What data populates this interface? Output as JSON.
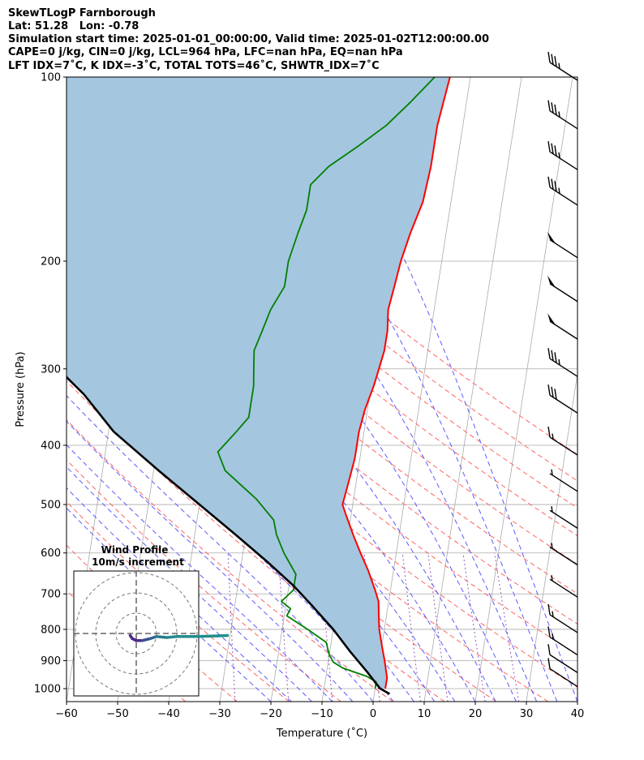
{
  "header": {
    "line1": "SkewTLogP Farnborough",
    "line2": "Lat: 51.28   Lon: -0.78",
    "line3": "Simulation start time: 2025-01-01_00:00:00, Valid time: 2025-01-02T12:00:00.00",
    "line4": "CAPE=0 j/kg, CIN=0 j/kg, LCL=964 hPa, LFC=nan hPa, EQ=nan hPa",
    "line5": "LFT IDX=7˚C, K IDX=-3˚C, TOTAL TOTS=46˚C, SHWTR_IDX=7˚C"
  },
  "chart_data": {
    "type": "line",
    "subtype": "skew-t log-p",
    "xlabel": "Temperature (˚C)",
    "ylabel": "Pressure (hPa)",
    "xlim": [
      -60,
      40
    ],
    "ylim": [
      1050,
      100
    ],
    "yscale": "log",
    "x_ticks": [
      "−60",
      "−50",
      "−40",
      "−30",
      "−20",
      "−10",
      "0",
      "10",
      "20",
      "30",
      "40"
    ],
    "x_tick_values": [
      -60,
      -50,
      -40,
      -30,
      -20,
      -10,
      0,
      10,
      20,
      30,
      40
    ],
    "y_ticks": [
      "100",
      "200",
      "300",
      "400",
      "500",
      "600",
      "700",
      "800",
      "900",
      "1000"
    ],
    "y_tick_values": [
      100,
      200,
      300,
      400,
      500,
      600,
      700,
      800,
      900,
      1000
    ],
    "grid": true,
    "colors": {
      "temperature": "#ff0000",
      "dewpoint": "#008000",
      "parcel": "#000000",
      "shading": "#a4c6df",
      "isotherm": "#aaaaaa",
      "dry_adiabat": "#ff6464",
      "moist_adiabat": "#5a5aff",
      "mixing_ratio": "#9c59b4"
    },
    "series": [
      {
        "key": "temperature",
        "points": [
          [
            2,
            1000
          ],
          [
            2,
            960
          ],
          [
            1,
            900
          ],
          [
            0,
            850
          ],
          [
            -1,
            800
          ],
          [
            -1.5,
            760
          ],
          [
            -2,
            720
          ],
          [
            -3,
            690
          ],
          [
            -5,
            640
          ],
          [
            -7,
            600
          ],
          [
            -9,
            560
          ],
          [
            -11,
            520
          ],
          [
            -12,
            500
          ],
          [
            -11.5,
            460
          ],
          [
            -11,
            420
          ],
          [
            -11,
            380
          ],
          [
            -10.5,
            350
          ],
          [
            -9.5,
            320
          ],
          [
            -9,
            300
          ],
          [
            -8.5,
            280
          ],
          [
            -8.5,
            260
          ],
          [
            -9,
            240
          ],
          [
            -8.5,
            220
          ],
          [
            -8,
            200
          ],
          [
            -7,
            180
          ],
          [
            -5.5,
            160
          ],
          [
            -5,
            140
          ],
          [
            -5,
            120
          ],
          [
            -4,
            100
          ]
        ]
      },
      {
        "key": "dewpoint",
        "points": [
          [
            0,
            1000
          ],
          [
            0,
            975
          ],
          [
            -2,
            955
          ],
          [
            -7,
            925
          ],
          [
            -9,
            905
          ],
          [
            -10,
            880
          ],
          [
            -11,
            840
          ],
          [
            -15,
            800
          ],
          [
            -19.5,
            760
          ],
          [
            -19,
            740
          ],
          [
            -21,
            720
          ],
          [
            -19,
            690
          ],
          [
            -19,
            650
          ],
          [
            -22,
            600
          ],
          [
            -24,
            560
          ],
          [
            -25,
            530
          ],
          [
            -29,
            490
          ],
          [
            -36,
            440
          ],
          [
            -38,
            410
          ],
          [
            -35,
            380
          ],
          [
            -33,
            360
          ],
          [
            -33,
            340
          ],
          [
            -33,
            320
          ],
          [
            -33.5,
            300
          ],
          [
            -34,
            280
          ],
          [
            -33,
            260
          ],
          [
            -32,
            240
          ],
          [
            -30,
            220
          ],
          [
            -30,
            200
          ],
          [
            -29,
            180
          ],
          [
            -28,
            165
          ],
          [
            -28,
            150
          ],
          [
            -25,
            140
          ],
          [
            -20,
            130
          ],
          [
            -15,
            120
          ],
          [
            -11,
            110
          ],
          [
            -7,
            100
          ]
        ]
      },
      {
        "key": "parcel",
        "points": [
          [
            3,
            1020
          ],
          [
            1,
            1000
          ],
          [
            0,
            980
          ],
          [
            -2,
            940
          ],
          [
            -6,
            870
          ],
          [
            -10,
            800
          ],
          [
            -15,
            730
          ],
          [
            -19,
            680
          ],
          [
            -25,
            620
          ],
          [
            -32,
            560
          ],
          [
            -40,
            500
          ],
          [
            -49,
            440
          ],
          [
            -59,
            380
          ],
          [
            -66,
            330
          ],
          [
            -76,
            280
          ],
          [
            -87,
            230
          ],
          [
            -97,
            190
          ],
          [
            -108,
            160
          ],
          [
            -117,
            135
          ],
          [
            -125,
            115
          ],
          [
            -132,
            100
          ]
        ]
      }
    ],
    "wind_barbs": [
      {
        "pressure": 100,
        "speed_kt": 35
      },
      {
        "pressure": 120,
        "speed_kt": 35
      },
      {
        "pressure": 140,
        "speed_kt": 35
      },
      {
        "pressure": 160,
        "speed_kt": 35
      },
      {
        "pressure": 195,
        "speed_kt": 50
      },
      {
        "pressure": 230,
        "speed_kt": 50
      },
      {
        "pressure": 265,
        "speed_kt": 50
      },
      {
        "pressure": 305,
        "speed_kt": 35
      },
      {
        "pressure": 350,
        "speed_kt": 30
      },
      {
        "pressure": 410,
        "speed_kt": 15
      },
      {
        "pressure": 470,
        "speed_kt": 5
      },
      {
        "pressure": 540,
        "speed_kt": 5
      },
      {
        "pressure": 620,
        "speed_kt": 5
      },
      {
        "pressure": 700,
        "speed_kt": 5
      },
      {
        "pressure": 800,
        "speed_kt": 15
      },
      {
        "pressure": 870,
        "speed_kt": 15
      },
      {
        "pressure": 930,
        "speed_kt": 10
      },
      {
        "pressure": 980,
        "speed_kt": 10
      }
    ],
    "inset": {
      "title": "Wind Profile",
      "subtitle": "10m/s increment",
      "hodograph": {
        "u": [
          -0.3,
          -0.2,
          0.0,
          0.3,
          0.7,
          1.0,
          1.5,
          2.0,
          3.0,
          4.0,
          4.5
        ],
        "v": [
          -0.1,
          -0.25,
          -0.35,
          -0.35,
          -0.25,
          -0.15,
          -0.2,
          -0.15,
          -0.15,
          -0.12,
          -0.1
        ],
        "colors": [
          "#4b2a8a",
          "#4b2a8a",
          "#4b2a8a",
          "#3b4f90",
          "#33648e",
          "#2c7a8e",
          "#26898e",
          "#228e8c",
          "#1f8e8a",
          "#1f8e8a",
          "#1f8e8a"
        ]
      }
    }
  }
}
